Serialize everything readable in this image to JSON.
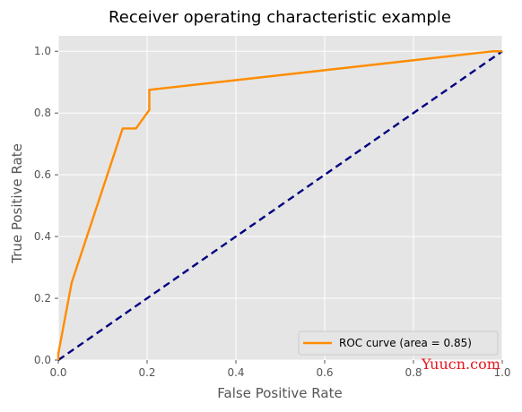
{
  "chart_data": {
    "type": "line",
    "title": "Receiver operating characteristic example",
    "xlabel": "False Positive Rate",
    "ylabel": "True Positive Rate",
    "xlim": [
      0.0,
      1.0
    ],
    "ylim": [
      0.0,
      1.05
    ],
    "xticks": [
      "0.0",
      "0.2",
      "0.4",
      "0.6",
      "0.8",
      "1.0"
    ],
    "yticks": [
      "0.0",
      "0.2",
      "0.4",
      "0.6",
      "0.8",
      "1.0"
    ],
    "grid": true,
    "legend_position": "lower-right",
    "series": [
      {
        "name": "ROC curve (area = 0.85)",
        "color": "#ff8c00",
        "style": "solid",
        "x": [
          0.0,
          0.0,
          0.03,
          0.145,
          0.175,
          0.205,
          0.205,
          0.98,
          1.0
        ],
        "y": [
          0.0,
          0.02,
          0.25,
          0.75,
          0.75,
          0.81,
          0.875,
          1.0,
          1.0
        ]
      },
      {
        "name": "",
        "color": "#000080",
        "style": "dashed",
        "x": [
          0.0,
          1.0
        ],
        "y": [
          0.0,
          1.0
        ]
      }
    ]
  },
  "watermark": "Yuucn.com",
  "colors": {
    "plot_background": "#e5e5e5",
    "grid": "#ffffff"
  }
}
